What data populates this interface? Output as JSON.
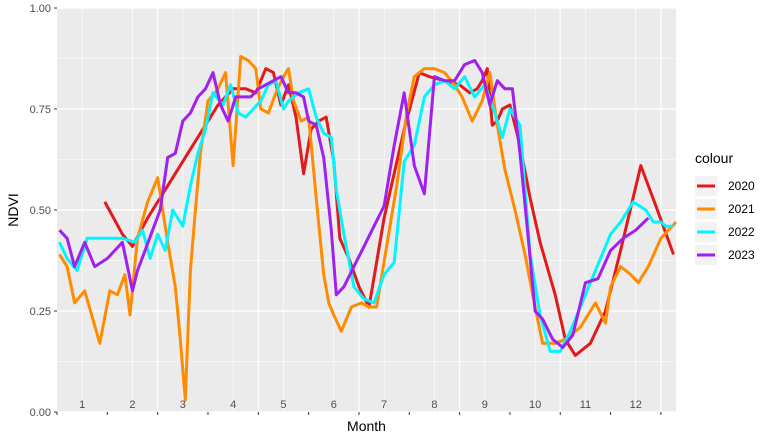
{
  "chart_data": {
    "type": "line",
    "xlabel": "Month",
    "ylabel": "NDVI",
    "xlim": [
      0,
      12.3
    ],
    "ylim": [
      0,
      1
    ],
    "y_ticks": [
      "0.00",
      "0.25",
      "0.50",
      "0.75",
      "1.00"
    ],
    "month_labels": [
      "1",
      "2",
      "3",
      "4",
      "5",
      "6",
      "7",
      "8",
      "9",
      "10",
      "11",
      "12"
    ],
    "grid": true,
    "legend": {
      "title": "colour",
      "position": "right"
    },
    "series": [
      {
        "name": "2020",
        "color": "#e31a1c",
        "x": [
          0.95,
          1.3,
          1.5,
          1.8,
          2.2,
          2.6,
          2.9,
          3.2,
          3.5,
          3.75,
          3.95,
          4.15,
          4.3,
          4.45,
          4.6,
          4.75,
          4.9,
          5.05,
          5.2,
          5.35,
          5.5,
          5.62,
          5.8,
          6.0,
          6.2,
          6.5,
          6.9,
          7.2,
          7.4,
          7.7,
          8.0,
          8.1,
          8.2,
          8.35,
          8.45,
          8.55,
          8.65,
          8.75,
          8.85,
          9.0,
          9.2,
          9.4,
          9.6,
          9.9,
          10.1,
          10.3,
          10.6,
          10.9,
          11.2,
          11.6,
          11.9,
          12.25
        ],
        "y": [
          0.52,
          0.44,
          0.41,
          0.48,
          0.56,
          0.64,
          0.7,
          0.76,
          0.8,
          0.8,
          0.79,
          0.85,
          0.84,
          0.76,
          0.81,
          0.73,
          0.59,
          0.7,
          0.72,
          0.73,
          0.62,
          0.43,
          0.38,
          0.31,
          0.26,
          0.48,
          0.7,
          0.84,
          0.83,
          0.82,
          0.81,
          0.8,
          0.79,
          0.8,
          0.82,
          0.85,
          0.71,
          0.72,
          0.75,
          0.76,
          0.66,
          0.53,
          0.42,
          0.29,
          0.18,
          0.14,
          0.17,
          0.25,
          0.4,
          0.61,
          0.51,
          0.39
        ]
      },
      {
        "name": "2021",
        "color": "#ff8c00",
        "x": [
          0.05,
          0.2,
          0.35,
          0.55,
          0.85,
          1.05,
          1.2,
          1.35,
          1.45,
          1.6,
          1.8,
          2.0,
          2.2,
          2.35,
          2.45,
          2.55,
          2.65,
          2.75,
          2.85,
          3.0,
          3.2,
          3.35,
          3.5,
          3.65,
          3.8,
          3.95,
          4.05,
          4.2,
          4.35,
          4.5,
          4.6,
          4.7,
          4.85,
          5.0,
          5.15,
          5.3,
          5.4,
          5.5,
          5.65,
          5.85,
          6.05,
          6.2,
          6.35,
          6.55,
          6.75,
          6.95,
          7.1,
          7.3,
          7.5,
          7.7,
          7.9,
          8.05,
          8.25,
          8.45,
          8.6,
          8.75,
          8.9,
          9.1,
          9.3,
          9.5,
          9.65,
          9.9,
          10.1,
          10.4,
          10.7,
          10.9,
          11.0,
          11.2,
          11.4,
          11.55,
          11.75,
          12.0,
          12.3
        ],
        "y": [
          0.39,
          0.36,
          0.27,
          0.3,
          0.17,
          0.3,
          0.29,
          0.34,
          0.24,
          0.43,
          0.52,
          0.58,
          0.42,
          0.31,
          0.18,
          0.03,
          0.35,
          0.5,
          0.64,
          0.77,
          0.8,
          0.84,
          0.61,
          0.88,
          0.87,
          0.85,
          0.75,
          0.74,
          0.79,
          0.83,
          0.85,
          0.77,
          0.72,
          0.73,
          0.53,
          0.34,
          0.27,
          0.24,
          0.2,
          0.26,
          0.27,
          0.26,
          0.26,
          0.41,
          0.56,
          0.74,
          0.83,
          0.85,
          0.85,
          0.84,
          0.81,
          0.78,
          0.72,
          0.77,
          0.84,
          0.71,
          0.6,
          0.5,
          0.39,
          0.26,
          0.17,
          0.17,
          0.18,
          0.21,
          0.27,
          0.22,
          0.31,
          0.36,
          0.34,
          0.32,
          0.36,
          0.43,
          0.47
        ]
      },
      {
        "name": "2022",
        "color": "#00f5ff",
        "x": [
          0.05,
          0.2,
          0.4,
          0.6,
          1.0,
          1.3,
          1.55,
          1.7,
          1.85,
          2.0,
          2.15,
          2.3,
          2.5,
          2.65,
          2.8,
          2.95,
          3.1,
          3.3,
          3.45,
          3.6,
          3.75,
          3.9,
          4.05,
          4.2,
          4.35,
          4.5,
          4.6,
          4.8,
          5.0,
          5.15,
          5.3,
          5.45,
          5.55,
          5.7,
          5.9,
          6.1,
          6.3,
          6.5,
          6.7,
          6.9,
          7.1,
          7.3,
          7.5,
          7.7,
          7.9,
          8.1,
          8.3,
          8.5,
          8.7,
          8.85,
          9.0,
          9.2,
          9.4,
          9.6,
          9.8,
          10.0,
          10.2,
          10.4,
          10.6,
          10.8,
          11.0,
          11.2,
          11.45,
          11.7,
          11.85,
          12.0,
          12.1,
          12.25
        ],
        "y": [
          0.42,
          0.38,
          0.35,
          0.43,
          0.43,
          0.43,
          0.42,
          0.45,
          0.38,
          0.44,
          0.4,
          0.5,
          0.46,
          0.56,
          0.64,
          0.7,
          0.79,
          0.76,
          0.81,
          0.74,
          0.73,
          0.75,
          0.77,
          0.81,
          0.82,
          0.75,
          0.77,
          0.79,
          0.8,
          0.73,
          0.69,
          0.68,
          0.55,
          0.44,
          0.31,
          0.28,
          0.27,
          0.34,
          0.37,
          0.62,
          0.66,
          0.78,
          0.81,
          0.82,
          0.8,
          0.83,
          0.78,
          0.81,
          0.74,
          0.68,
          0.75,
          0.71,
          0.39,
          0.24,
          0.15,
          0.15,
          0.2,
          0.26,
          0.32,
          0.38,
          0.44,
          0.47,
          0.52,
          0.5,
          0.47,
          0.47,
          0.46,
          0.46
        ]
      },
      {
        "name": "2023",
        "color": "#a020f0",
        "x": [
          0.05,
          0.2,
          0.35,
          0.55,
          0.75,
          1.0,
          1.15,
          1.3,
          1.5,
          1.6,
          1.75,
          1.9,
          2.05,
          2.2,
          2.35,
          2.5,
          2.65,
          2.8,
          2.95,
          3.1,
          3.25,
          3.4,
          3.55,
          3.7,
          3.85,
          4.0,
          4.15,
          4.3,
          4.45,
          4.6,
          4.75,
          4.9,
          5.0,
          5.15,
          5.3,
          5.45,
          5.55,
          5.7,
          5.9,
          6.1,
          6.3,
          6.5,
          6.7,
          6.9,
          7.1,
          7.3,
          7.5,
          7.7,
          7.9,
          8.1,
          8.3,
          8.45,
          8.6,
          8.75,
          8.9,
          9.05,
          9.2,
          9.35,
          9.5,
          9.65,
          9.85,
          10.05,
          10.25,
          10.5,
          10.75,
          11.0,
          11.25,
          11.5,
          11.75
        ],
        "y": [
          0.45,
          0.43,
          0.36,
          0.42,
          0.36,
          0.38,
          0.4,
          0.42,
          0.3,
          0.35,
          0.4,
          0.45,
          0.5,
          0.63,
          0.64,
          0.72,
          0.74,
          0.78,
          0.8,
          0.84,
          0.76,
          0.72,
          0.78,
          0.78,
          0.78,
          0.8,
          0.81,
          0.82,
          0.83,
          0.79,
          0.79,
          0.78,
          0.72,
          0.71,
          0.63,
          0.45,
          0.29,
          0.31,
          0.36,
          0.41,
          0.46,
          0.51,
          0.66,
          0.79,
          0.61,
          0.54,
          0.83,
          0.82,
          0.82,
          0.86,
          0.87,
          0.84,
          0.76,
          0.82,
          0.8,
          0.8,
          0.64,
          0.45,
          0.25,
          0.23,
          0.18,
          0.16,
          0.19,
          0.32,
          0.33,
          0.4,
          0.43,
          0.45,
          0.48
        ]
      }
    ]
  }
}
